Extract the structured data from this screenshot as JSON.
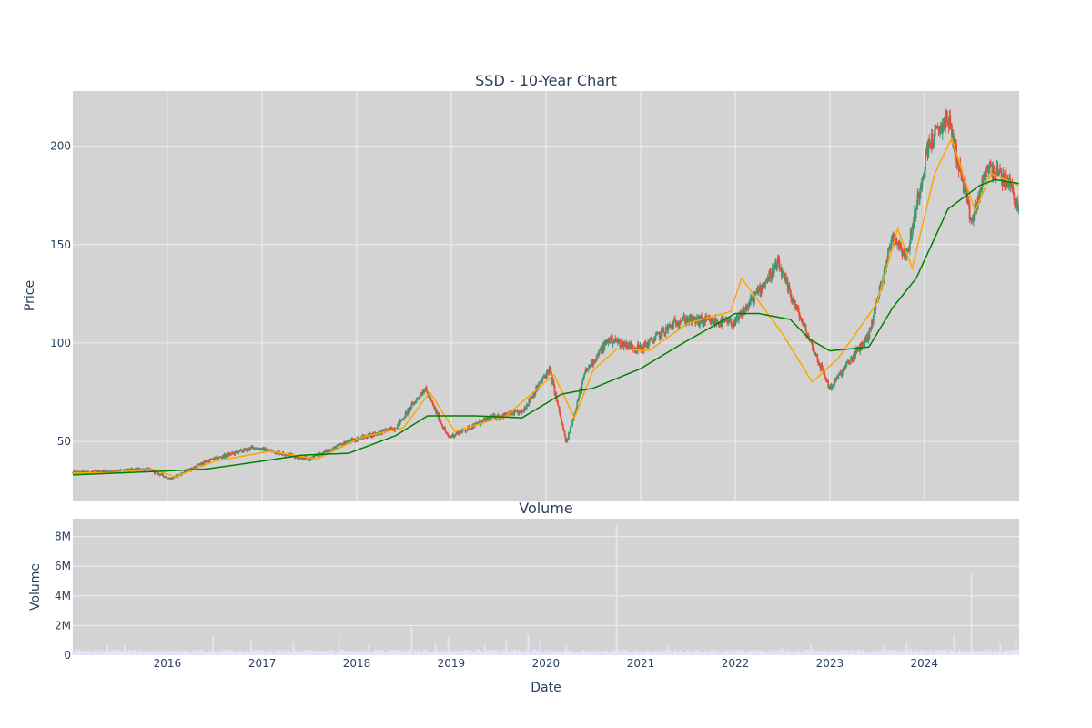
{
  "chart_data": [
    {
      "type": "candlestick",
      "title": "SSD - 10-Year Chart",
      "xlabel": "",
      "ylabel": "Price",
      "x_range": [
        "2015-01-01",
        "2025-01-01"
      ],
      "ylim": [
        20,
        228
      ],
      "yticks": [
        50,
        100,
        150,
        200
      ],
      "grid": true,
      "legend": "none",
      "colors": {
        "background": "#d3d3d3",
        "grid": "#eeeeee",
        "increasing": "#3d9970",
        "decreasing": "#e74c3c",
        "ma_short": "#ffa500",
        "ma_long": "#008000"
      },
      "price_path": {
        "dates": [
          "2015-01-01",
          "2015-06-01",
          "2015-10-15",
          "2016-01-15",
          "2016-06-01",
          "2016-12-01",
          "2017-07-01",
          "2017-12-01",
          "2018-06-01",
          "2018-09-20",
          "2018-12-20",
          "2019-06-01",
          "2019-10-01",
          "2020-01-15",
          "2020-03-20",
          "2020-06-01",
          "2020-09-01",
          "2021-01-01",
          "2021-06-01",
          "2021-12-31",
          "2022-06-15",
          "2022-10-10",
          "2023-01-01",
          "2023-06-01",
          "2023-09-01",
          "2023-10-25",
          "2024-01-15",
          "2024-04-01",
          "2024-07-01",
          "2024-09-01",
          "2024-12-01",
          "2024-12-31"
        ],
        "prices": [
          34,
          35,
          36,
          31,
          40,
          47,
          41,
          50,
          57,
          77,
          52,
          62,
          65,
          87,
          49,
          85,
          102,
          97,
          112,
          110,
          140,
          103,
          77,
          104,
          155,
          144,
          200,
          215,
          161,
          190,
          180,
          166
        ]
      },
      "moving_averages": [
        {
          "window": "short",
          "dates": [
            "2015-01-01",
            "2015-06-01",
            "2015-11-01",
            "2016-02-01",
            "2016-07-01",
            "2017-02-01",
            "2017-08-01",
            "2018-01-15",
            "2018-07-01",
            "2018-10-10",
            "2019-01-15",
            "2019-08-01",
            "2020-02-01",
            "2020-04-20",
            "2020-07-01",
            "2020-10-01",
            "2021-02-01",
            "2021-07-01",
            "2021-12-15",
            "2022-01-25",
            "2022-07-01",
            "2022-10-25",
            "2023-02-01",
            "2023-07-01",
            "2023-09-20",
            "2023-11-15",
            "2024-02-10",
            "2024-04-15",
            "2024-07-15",
            "2024-09-15",
            "2024-12-31"
          ],
          "values": [
            34,
            34,
            36,
            32,
            40,
            45,
            41,
            52,
            57,
            75,
            55,
            63,
            84,
            62,
            86,
            97,
            96,
            110,
            116,
            133,
            105,
            80,
            92,
            120,
            158,
            138,
            186,
            204,
            167,
            186,
            180
          ]
        },
        {
          "window": "long",
          "dates": [
            "2015-01-01",
            "2016-01-01",
            "2016-06-01",
            "2017-01-01",
            "2017-06-01",
            "2017-12-01",
            "2018-06-01",
            "2018-10-01",
            "2019-04-01",
            "2019-10-01",
            "2020-03-01",
            "2020-07-01",
            "2021-01-01",
            "2021-06-01",
            "2022-01-01",
            "2022-04-01",
            "2022-08-01",
            "2022-10-15",
            "2023-01-01",
            "2023-06-01",
            "2023-09-01",
            "2023-12-01",
            "2024-04-01",
            "2024-08-01",
            "2024-10-01",
            "2024-12-31"
          ],
          "values": [
            33,
            35,
            36,
            40,
            43,
            44,
            53,
            63,
            63,
            62,
            74,
            77,
            87,
            99,
            115,
            115,
            112,
            102,
            96,
            98,
            118,
            133,
            168,
            180,
            183,
            181
          ]
        }
      ]
    },
    {
      "type": "bar",
      "title": "Volume",
      "xlabel": "Date",
      "ylabel": "Volume",
      "x_range": [
        "2015-01-01",
        "2025-01-01"
      ],
      "x_tick_labels": [
        "2016",
        "2017",
        "2018",
        "2019",
        "2020",
        "2021",
        "2022",
        "2023",
        "2024"
      ],
      "ylim": [
        0,
        9200000
      ],
      "yticks": [
        0,
        2000000,
        4000000,
        6000000,
        8000000
      ],
      "ytick_labels": [
        "0",
        "2M",
        "4M",
        "6M",
        "8M"
      ],
      "grid": true,
      "colors": {
        "background": "#d3d3d3",
        "grid": "#eeeeee",
        "bar": "#e4e4f6"
      },
      "baseline": 300000,
      "spikes": [
        {
          "date": "2015-05-15",
          "value": 700000
        },
        {
          "date": "2015-07-20",
          "value": 650000
        },
        {
          "date": "2016-06-25",
          "value": 1300000
        },
        {
          "date": "2016-11-20",
          "value": 1000000
        },
        {
          "date": "2017-05-01",
          "value": 900000
        },
        {
          "date": "2017-10-25",
          "value": 1350000
        },
        {
          "date": "2018-02-15",
          "value": 700000
        },
        {
          "date": "2018-08-01",
          "value": 1900000
        },
        {
          "date": "2018-11-01",
          "value": 800000
        },
        {
          "date": "2018-12-20",
          "value": 1200000
        },
        {
          "date": "2019-05-10",
          "value": 700000
        },
        {
          "date": "2019-08-01",
          "value": 1000000
        },
        {
          "date": "2019-10-25",
          "value": 1400000
        },
        {
          "date": "2019-12-10",
          "value": 1000000
        },
        {
          "date": "2020-03-20",
          "value": 700000
        },
        {
          "date": "2020-09-30",
          "value": 8800000
        },
        {
          "date": "2021-04-15",
          "value": 600000
        },
        {
          "date": "2022-07-01",
          "value": 500000
        },
        {
          "date": "2022-10-20",
          "value": 700000
        },
        {
          "date": "2023-07-25",
          "value": 650000
        },
        {
          "date": "2023-10-25",
          "value": 900000
        },
        {
          "date": "2024-04-25",
          "value": 1400000
        },
        {
          "date": "2024-07-01",
          "value": 5500000
        },
        {
          "date": "2024-10-20",
          "value": 800000
        },
        {
          "date": "2024-12-20",
          "value": 1100000
        }
      ]
    }
  ]
}
